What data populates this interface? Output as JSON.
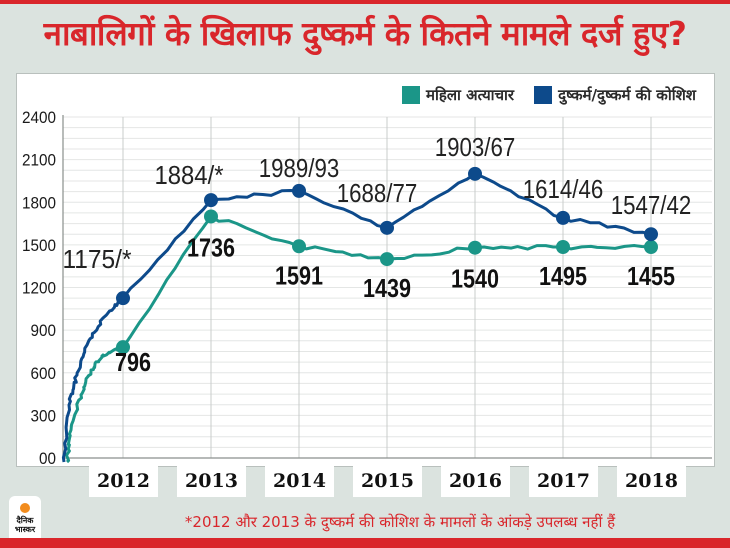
{
  "title": "नाबालिगों के खिलाफ दुष्कर्म के कितने मामले दर्ज हुए?",
  "footnote": "*2012 और 2013 के दुष्कर्म की कोशिश के मामलों के आंकड़े उपलब्ध नहीं हैं",
  "logo": {
    "line1": "दैनिक",
    "line2": "भास्कर"
  },
  "colors": {
    "brand_red": "#d9262b",
    "teal": "#1b9688",
    "blue": "#0d4a8b",
    "grid": "#e4e6e5",
    "year_grid": "#c9cccb",
    "axis": "#8a8f8d"
  },
  "chart_data": {
    "type": "line",
    "title": "नाबालिगों के खिलाफ दुष्कर्म के कितने मामले दर्ज हुए?",
    "xlabel": "",
    "ylabel": "",
    "ylim": [
      0,
      2400
    ],
    "yticks": [
      0,
      300,
      600,
      900,
      1200,
      1500,
      1800,
      2100,
      2400
    ],
    "ytick_labels": [
      "00",
      "300",
      "600",
      "900",
      "1200",
      "1500",
      "1800",
      "2100",
      "2400"
    ],
    "grid": true,
    "legend_position": "top-right",
    "categories": [
      "2012",
      "2013",
      "2014",
      "2015",
      "2016",
      "2017",
      "2018"
    ],
    "series": [
      {
        "name": "महिला अत्याचार",
        "color": "#1b9688",
        "values": [
          796,
          1736,
          1591,
          1439,
          1540,
          1495,
          1455
        ],
        "labels": [
          "796",
          "1736",
          "1591",
          "1439",
          "1540",
          "1495",
          "1455"
        ],
        "display_levels": [
          780,
          1700,
          1490,
          1400,
          1480,
          1485,
          1485
        ]
      },
      {
        "name": "दुष्कर्म/दुष्कर्म की कोशिश",
        "color": "#0d4a8b",
        "values": [
          1175,
          1884,
          1989,
          1688,
          1903,
          1614,
          1547
        ],
        "attempt_values": [
          null,
          null,
          93,
          77,
          67,
          46,
          42
        ],
        "labels": [
          "1175/*",
          "1884/*",
          "1989/93",
          "1688/77",
          "1903/67",
          "1614/46",
          "1547/42"
        ],
        "display_levels": [
          1125,
          1815,
          1880,
          1620,
          2000,
          1690,
          1575
        ]
      }
    ]
  }
}
